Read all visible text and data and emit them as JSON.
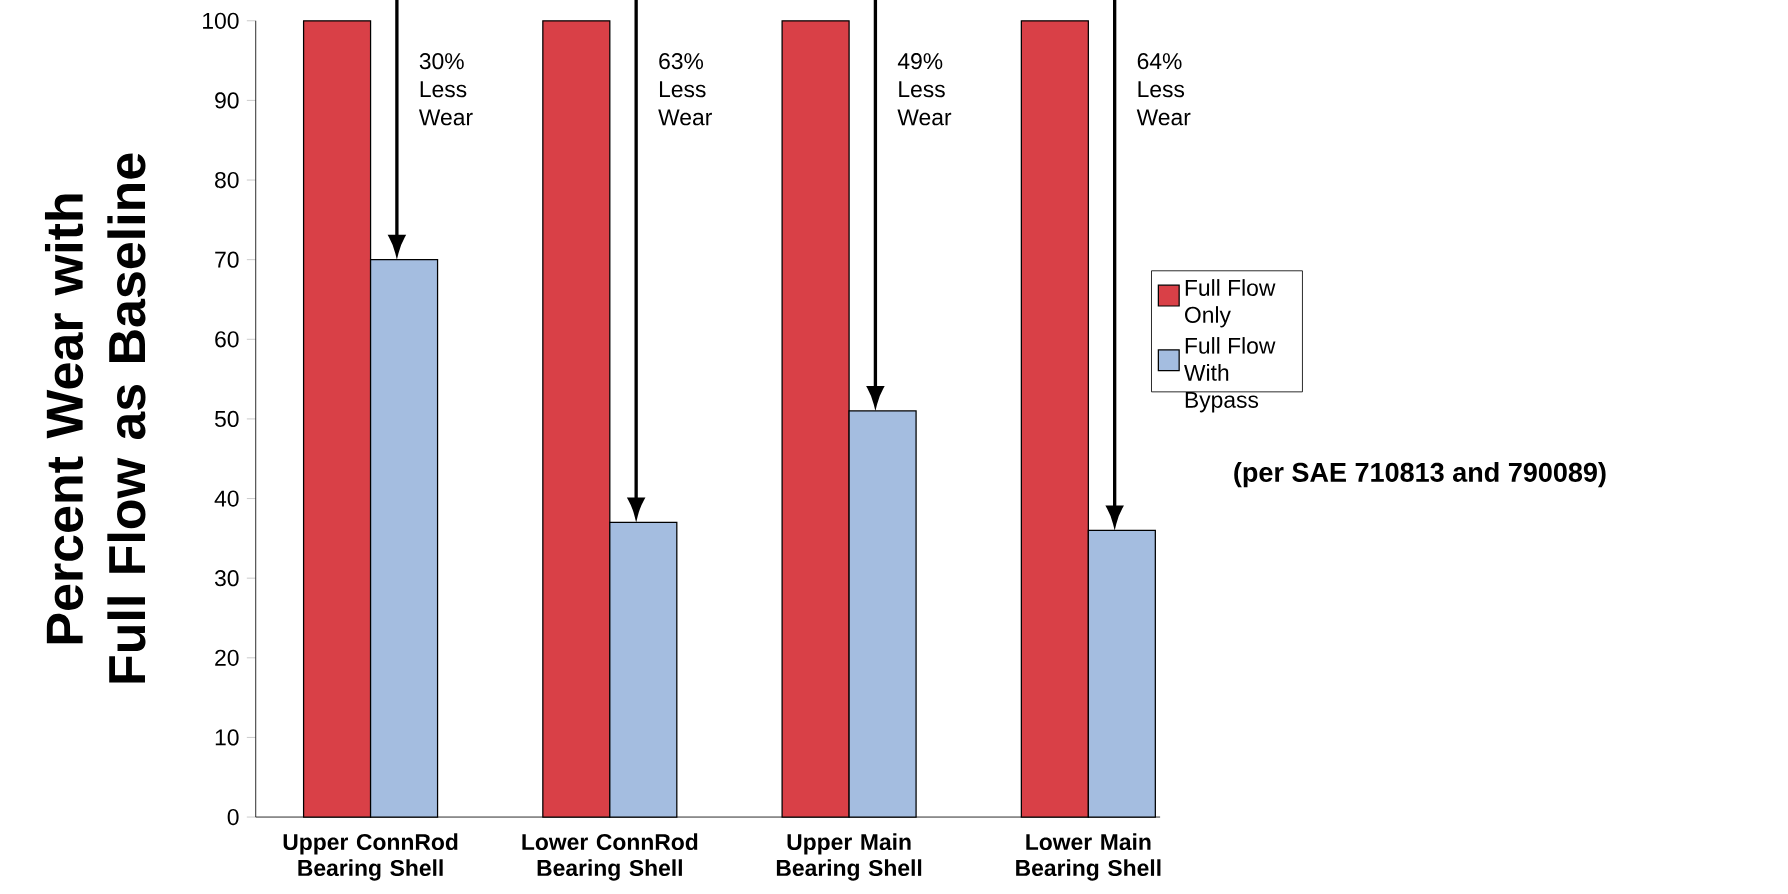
{
  "chart_data": {
    "type": "bar",
    "ylabel": "Percent Wear with Full Flow as Baseline",
    "categories": [
      "Upper ConnRod Bearing Shell",
      "Lower ConnRod Bearing Shell",
      "Upper Main Bearing Shell",
      "Lower Main Bearing Shell"
    ],
    "series": [
      {
        "name": "Full Flow Only",
        "color": "#d94047",
        "values": [
          100,
          100,
          100,
          100
        ]
      },
      {
        "name": "Full Flow With Bypass",
        "color": "#a4bde0",
        "values": [
          70,
          37,
          51,
          36
        ]
      }
    ],
    "ylim": [
      0,
      100
    ],
    "yticks": [
      0,
      10,
      20,
      30,
      40,
      50,
      60,
      70,
      80,
      90,
      100
    ],
    "annotations": [
      "30% Less Wear",
      "63% Less Wear",
      "49% Less Wear",
      "64% Less Wear",
      "(per SAE 710813 and 790089)"
    ],
    "legend": "right",
    "grid": false
  }
}
